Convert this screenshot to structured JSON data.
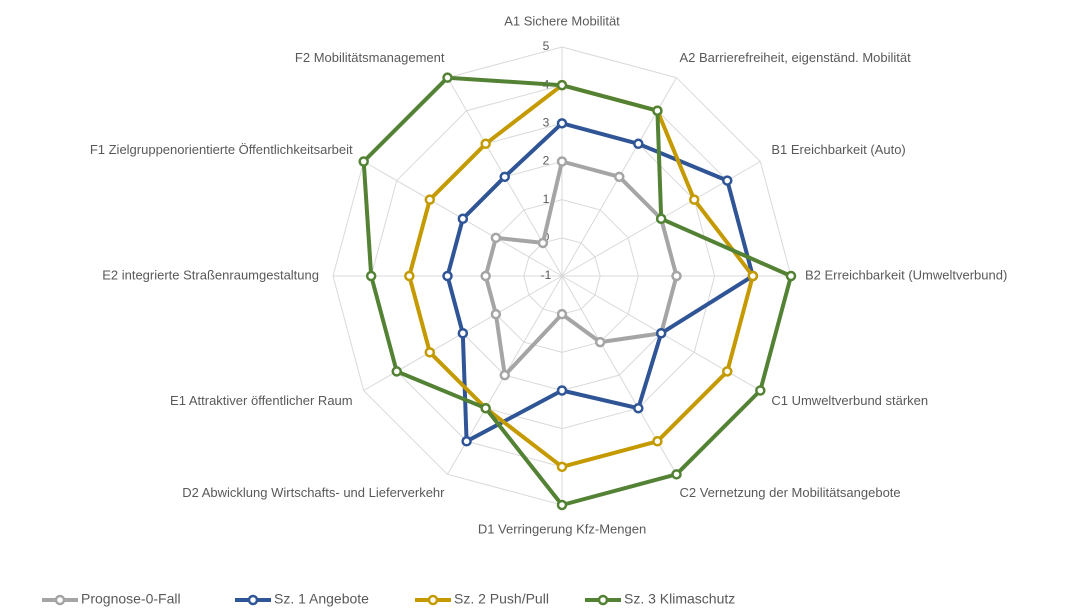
{
  "chart_data": {
    "type": "radar",
    "categories": [
      "A1 Sichere Mobilität",
      "A2 Barrierefreiheit, eigenständ. Mobilität",
      "B1 Ereichbarkeit (Auto)",
      "B2 Erreichbarkeit (Umweltverbund)",
      "C1 Umweltverbund stärken",
      "C2 Vernetzung der Mobilitätsangebote",
      "D1 Verringerung Kfz-Mengen",
      "D2 Abwicklung Wirtschafts- und Lieferverkehr",
      "E1 Attraktiver öffentlicher Raum",
      "E2 integrierte Straßenraumgestaltung",
      "F1 Zielgruppenorientierte Öffentlichkeitsarbeit",
      "F2 Mobilitätsmanagement"
    ],
    "series": [
      {
        "name": "Prognose-0-Fall",
        "color": "#a5a5a5",
        "values": [
          2,
          2,
          2,
          2,
          2,
          1,
          0,
          2,
          1,
          1,
          1,
          0
        ]
      },
      {
        "name": "Sz. 1 Angebote",
        "color": "#2f5597",
        "values": [
          3,
          3,
          4,
          4,
          2,
          3,
          2,
          4,
          2,
          2,
          2,
          2
        ]
      },
      {
        "name": "Sz. 2 Push/Pull",
        "color": "#c49a00",
        "values": [
          4,
          4,
          3,
          4,
          4,
          4,
          4,
          3,
          3,
          3,
          3,
          3
        ]
      },
      {
        "name": "Sz. 3 Klimaschutz",
        "color": "#548235",
        "values": [
          4,
          4,
          2,
          5,
          5,
          5,
          5,
          3,
          4,
          4,
          5,
          5
        ]
      }
    ],
    "rlim": [
      -1,
      5
    ],
    "rticks": [
      -1,
      0,
      1,
      2,
      3,
      4,
      5
    ],
    "grid": true,
    "legend": "bottom"
  }
}
